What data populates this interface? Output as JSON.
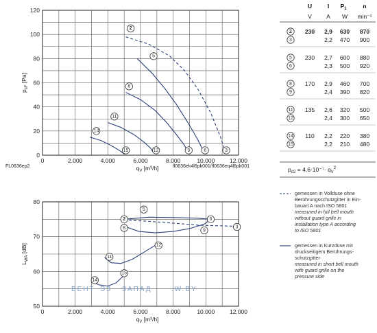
{
  "chart_data": [
    {
      "type": "line",
      "ylabel": "p",
      "ylabel_sub": "sF",
      "ylabel_unit": "[Pa]",
      "xlabel": "q",
      "xlabel_sub": "V",
      "xlabel_unit": "[m³/h]",
      "xlim": [
        0,
        12000
      ],
      "ylim": [
        0,
        120
      ],
      "x_ticks": [
        "0",
        "2.000",
        "4.000",
        "6.000",
        "8.000",
        "10.000",
        "12.000"
      ],
      "y_ticks": [
        "0",
        "20",
        "40",
        "60",
        "80",
        "100",
        "120"
      ],
      "grid": true,
      "footer_left": "FL0636ep2",
      "footer_right": "fl0636ek4l6pk001/fl0636eq4l6pk001",
      "series": [
        {
          "id": "2",
          "bold": true,
          "style": "dashed",
          "points": [
            [
              5100,
              98
            ],
            [
              6500,
              92
            ],
            [
              7800,
              82
            ],
            [
              8700,
              70
            ],
            [
              9500,
              55
            ],
            [
              10300,
              35
            ],
            [
              10900,
              15
            ],
            [
              11200,
              2
            ]
          ]
        },
        {
          "id": "5",
          "bold": false,
          "style": "solid",
          "points": [
            [
              5800,
              80
            ],
            [
              6700,
              68
            ],
            [
              7500,
              55
            ],
            [
              8200,
              42
            ],
            [
              8900,
              27
            ],
            [
              9500,
              13
            ],
            [
              9900,
              2
            ]
          ]
        },
        {
          "id": "8",
          "bold": false,
          "style": "solid",
          "points": [
            [
              5100,
              52
            ],
            [
              6000,
              46
            ],
            [
              6900,
              37
            ],
            [
              7600,
              27
            ],
            [
              8200,
              17
            ],
            [
              8700,
              8
            ],
            [
              8900,
              2
            ]
          ]
        },
        {
          "id": "11",
          "bold": false,
          "style": "solid",
          "points": [
            [
              4000,
              27
            ],
            [
              4800,
              23
            ],
            [
              5600,
              17
            ],
            [
              6200,
              11
            ],
            [
              6600,
              6
            ],
            [
              6800,
              2
            ]
          ]
        },
        {
          "id": "14",
          "bold": false,
          "style": "solid",
          "points": [
            [
              2900,
              15
            ],
            [
              3600,
              12
            ],
            [
              4200,
              8
            ],
            [
              4700,
              4
            ],
            [
              5000,
              1
            ]
          ]
        }
      ],
      "end_markers": [
        {
          "id": "15",
          "x": 5100,
          "y": 4
        },
        {
          "id": "12",
          "x": 6950,
          "y": 4
        },
        {
          "id": "9",
          "x": 8950,
          "y": 4
        },
        {
          "id": "6",
          "x": 9950,
          "y": 4
        },
        {
          "id": "3",
          "x": 11250,
          "y": 4
        }
      ],
      "start_markers": [
        {
          "id": "2",
          "x": 5400,
          "y": 105,
          "bold": true
        },
        {
          "id": "5",
          "x": 6800,
          "y": 82
        },
        {
          "id": "8",
          "x": 5300,
          "y": 57
        },
        {
          "id": "11",
          "x": 4400,
          "y": 32
        },
        {
          "id": "14",
          "x": 3300,
          "y": 20
        }
      ]
    },
    {
      "type": "line",
      "ylabel": "L",
      "ylabel_sub": "WA",
      "ylabel_unit": "[dB]",
      "xlabel": "q",
      "xlabel_sub": "V",
      "xlabel_unit": "[m³/h]",
      "xlim": [
        0,
        12000
      ],
      "ylim": [
        50,
        80
      ],
      "x_ticks": [
        "0",
        "2.000",
        "4.000",
        "6.000",
        "8.000",
        "10.000",
        "12.000"
      ],
      "y_ticks": [
        "50",
        "60",
        "70",
        "80"
      ],
      "grid": true,
      "series": [
        {
          "id": "2-3",
          "style": "dashed",
          "points": [
            [
              5000,
              74.8
            ],
            [
              6500,
              74.4
            ],
            [
              8000,
              73.9
            ],
            [
              9500,
              73.3
            ],
            [
              11000,
              73.1
            ],
            [
              12000,
              73.0
            ]
          ]
        },
        {
          "id": "5-6",
          "style": "solid",
          "points": [
            [
              5000,
              75.0
            ],
            [
              6500,
              75.6
            ],
            [
              8000,
              75.5
            ],
            [
              9500,
              75.3
            ],
            [
              10300,
              75.0
            ]
          ]
        },
        {
          "id": "8-9",
          "style": "solid",
          "points": [
            [
              5000,
              73.0
            ],
            [
              5900,
              71.5
            ],
            [
              6900,
              71.1
            ],
            [
              8000,
              71.5
            ],
            [
              9000,
              72.3
            ],
            [
              9900,
              73.6
            ],
            [
              10300,
              75.0
            ]
          ]
        },
        {
          "id": "11-12",
          "style": "solid",
          "points": [
            [
              3800,
              64.0
            ],
            [
              4200,
              62.5
            ],
            [
              4800,
              62.3
            ],
            [
              5500,
              63.5
            ],
            [
              6200,
              65.5
            ],
            [
              6900,
              67.5
            ]
          ]
        },
        {
          "id": "14-15",
          "style": "solid",
          "points": [
            [
              3100,
              56.8
            ],
            [
              3500,
              56.1
            ],
            [
              4000,
              55.8
            ],
            [
              4500,
              56.7
            ],
            [
              5100,
              59.3
            ]
          ]
        }
      ],
      "markers": [
        {
          "id": "5",
          "x": 6200,
          "y": 77.8
        },
        {
          "id": "2",
          "x": 5000,
          "y": 75.0,
          "bold": true
        },
        {
          "id": "8",
          "x": 5000,
          "y": 72.5
        },
        {
          "id": "6",
          "x": 10300,
          "y": 75.0
        },
        {
          "id": "9",
          "x": 9900,
          "y": 71.8
        },
        {
          "id": "3",
          "x": 11900,
          "y": 72.8
        },
        {
          "id": "11",
          "x": 4100,
          "y": 64.2
        },
        {
          "id": "12",
          "x": 7100,
          "y": 67.5
        },
        {
          "id": "15",
          "x": 5000,
          "y": 59.5
        },
        {
          "id": "14",
          "x": 3200,
          "y": 57.5
        }
      ],
      "watermark": [
        "ВЕНТ",
        "ЭЗ",
        "ЗАПАД",
        ".W.BY"
      ]
    }
  ],
  "table": {
    "headers": [
      "U",
      "I",
      "P",
      "1",
      "n"
    ],
    "units": [
      "V",
      "A",
      "W",
      "min⁻¹"
    ],
    "groups": [
      {
        "rows": [
          {
            "id": "2",
            "bold": true,
            "U": "230",
            "I": "2,9",
            "P": "630",
            "n": "870"
          },
          {
            "id": "3",
            "bold": false,
            "U": "",
            "I": "2,2",
            "P": "470",
            "n": "900"
          }
        ]
      },
      {
        "rows": [
          {
            "id": "5",
            "bold": false,
            "U": "230",
            "I": "2,7",
            "P": "600",
            "n": "880"
          },
          {
            "id": "6",
            "bold": false,
            "U": "",
            "I": "2,3",
            "P": "500",
            "n": "920"
          }
        ]
      },
      {
        "rows": [
          {
            "id": "8",
            "bold": false,
            "U": "170",
            "I": "2,9",
            "P": "460",
            "n": "700"
          },
          {
            "id": "9",
            "bold": false,
            "U": "",
            "I": "2,4",
            "P": "390",
            "n": "820"
          }
        ]
      },
      {
        "rows": [
          {
            "id": "11",
            "bold": false,
            "U": "135",
            "I": "2,6",
            "P": "320",
            "n": "500"
          },
          {
            "id": "12",
            "bold": false,
            "U": "",
            "I": "2,4",
            "P": "300",
            "n": "650"
          }
        ]
      },
      {
        "rows": [
          {
            "id": "14",
            "bold": false,
            "U": "110",
            "I": "2,2",
            "P": "220",
            "n": "380"
          },
          {
            "id": "15",
            "bold": false,
            "U": "",
            "I": "2,2",
            "P": "210",
            "n": "480"
          }
        ]
      }
    ],
    "formula": "p",
    "formula_sub": "d2",
    "formula_rest": " = 4,6·10⁻⁷· q",
    "formula_sub2": "V",
    "formula_sup": "2"
  },
  "legend": {
    "dashed": {
      "de": [
        "gemessen in Vollduse ohne",
        "Berührungsschutzgitter in Ein-",
        "bauart A nach ISO 5801"
      ],
      "en": [
        "measured in full bell mouth",
        "without guard grille in",
        "installation type A according",
        "to ISO 5801"
      ]
    },
    "solid": {
      "de": [
        "gemessen in Kurzdüse mit",
        "druckseitigem Berührungs-",
        "schutzgitter"
      ],
      "en": [
        "measured in short bell mouth",
        "with guard grille on the",
        "pressure side"
      ]
    }
  }
}
